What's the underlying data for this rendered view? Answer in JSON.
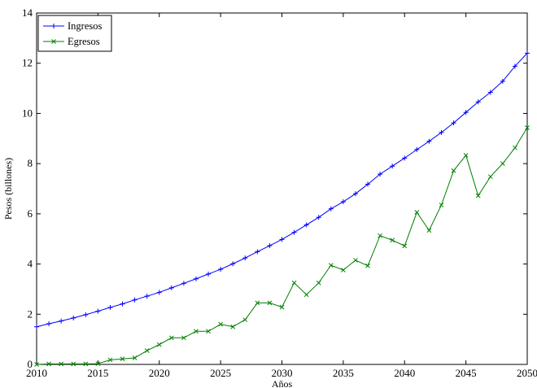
{
  "chart_data": {
    "type": "line",
    "title": "",
    "xlabel": "Años",
    "ylabel": "Pesos (billones)",
    "xlim": [
      2010,
      2050
    ],
    "ylim": [
      0,
      14
    ],
    "xticks": [
      2010,
      2015,
      2020,
      2025,
      2030,
      2035,
      2040,
      2045,
      2050
    ],
    "yticks": [
      0,
      2,
      4,
      6,
      8,
      10,
      12,
      14
    ],
    "x": [
      2010,
      2011,
      2012,
      2013,
      2014,
      2015,
      2016,
      2017,
      2018,
      2019,
      2020,
      2021,
      2022,
      2023,
      2024,
      2025,
      2026,
      2027,
      2028,
      2029,
      2030,
      2031,
      2032,
      2033,
      2034,
      2035,
      2036,
      2037,
      2038,
      2039,
      2040,
      2041,
      2042,
      2043,
      2044,
      2045,
      2046,
      2047,
      2048,
      2049,
      2050
    ],
    "series": [
      {
        "name": "Ingresos",
        "color": "#0000ff",
        "marker": "plus",
        "values": [
          1.5,
          1.62,
          1.73,
          1.85,
          1.98,
          2.12,
          2.27,
          2.41,
          2.57,
          2.72,
          2.87,
          3.05,
          3.23,
          3.41,
          3.6,
          3.79,
          4.01,
          4.24,
          4.49,
          4.73,
          4.98,
          5.26,
          5.56,
          5.86,
          6.2,
          6.48,
          6.8,
          7.18,
          7.58,
          7.9,
          8.22,
          8.56,
          8.89,
          9.24,
          9.62,
          10.04,
          10.46,
          10.84,
          11.28,
          11.88,
          12.4
        ]
      },
      {
        "name": "Egresos",
        "color": "#008000",
        "marker": "x",
        "values": [
          0.0,
          0.02,
          0.02,
          0.02,
          0.02,
          0.03,
          0.18,
          0.22,
          0.26,
          0.55,
          0.79,
          1.06,
          1.06,
          1.32,
          1.32,
          1.6,
          1.5,
          1.78,
          2.45,
          2.45,
          2.28,
          3.25,
          2.78,
          3.25,
          3.95,
          3.76,
          4.15,
          3.93,
          5.13,
          4.95,
          4.72,
          6.06,
          5.34,
          6.35,
          7.72,
          8.33,
          6.72,
          7.48,
          8.0,
          8.63,
          9.43
        ]
      }
    ],
    "legend": "top-left",
    "grid": false
  }
}
